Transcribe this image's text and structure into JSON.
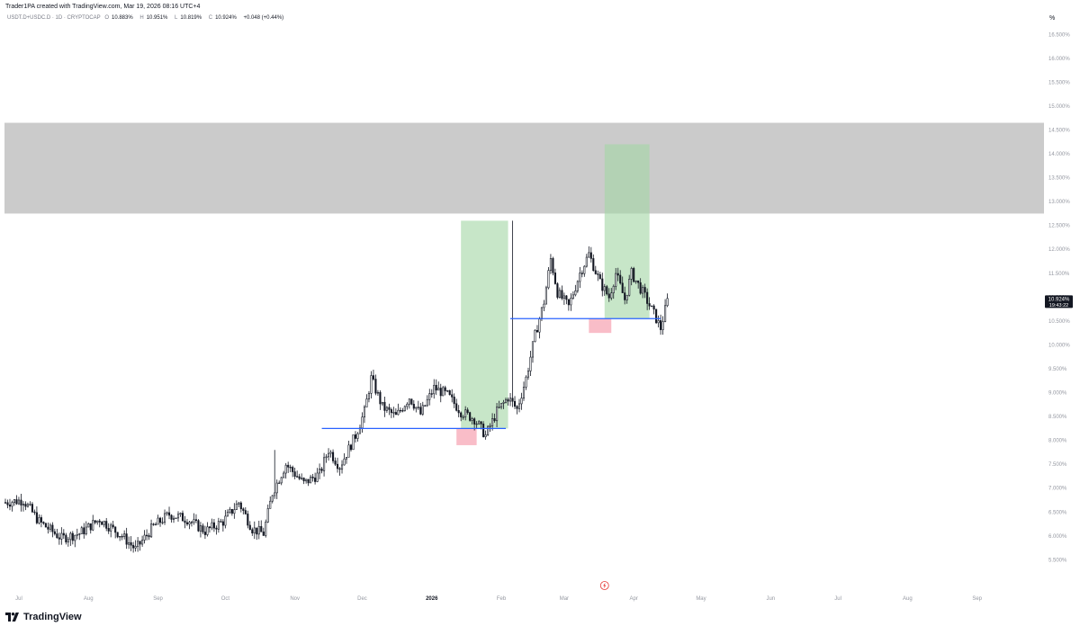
{
  "header": {
    "created_by": "Trader1PA created with TradingView.com, Mar 19, 2026 08:16 UTC+4",
    "symbol": "USDT.D+USDC.D · 1D · CRYPTOCAP",
    "ohlc": [
      {
        "label": "O",
        "value": "10.883%"
      },
      {
        "label": "H",
        "value": "10.951%"
      },
      {
        "label": "L",
        "value": "10.819%"
      },
      {
        "label": "C",
        "value": "10.924%"
      }
    ],
    "change": "+0.048 (+0.44%)",
    "unit": "%"
  },
  "logo": {
    "text": "TradingView",
    "icon": "tradingview-logo-icon"
  },
  "chart_data": {
    "type": "candlestick",
    "ylim": [
      5.3,
      16.6
    ],
    "y_ticks": [
      "5.500%",
      "6.000%",
      "6.500%",
      "7.000%",
      "7.500%",
      "8.000%",
      "8.500%",
      "9.000%",
      "9.500%",
      "10.000%",
      "10.500%",
      "11.000%",
      "11.500%",
      "12.000%",
      "12.500%",
      "13.000%",
      "13.500%",
      "14.000%",
      "14.500%",
      "15.000%",
      "15.500%",
      "16.000%",
      "16.500%"
    ],
    "x_ticks": [
      "Jul",
      "Aug",
      "Sep",
      "Oct",
      "Nov",
      "Dec",
      "2026",
      "Feb",
      "Mar",
      "Apr",
      "May",
      "Jun",
      "Jul",
      "Aug",
      "Sep"
    ],
    "x_start": "2025-06-25",
    "x_end": "2026-09-30",
    "price_label": {
      "value": "10.924%",
      "countdown": "19:43:22"
    },
    "colors": {
      "candle": "#131722",
      "supply_zone": "#c8c8c8",
      "target": "#a5d6a7",
      "stop": "#f7a7b5",
      "support_line": "#2962ff"
    },
    "supply_zone": {
      "y_low": 12.75,
      "y_high": 14.65
    },
    "support_lines": [
      {
        "from": "2025-11-13",
        "to": "2026-02-03",
        "y": 8.25
      },
      {
        "from": "2026-02-05",
        "to": "2026-04-13",
        "y": 10.55
      }
    ],
    "target_boxes": [
      {
        "from": "2026-01-14",
        "to": "2026-02-04",
        "y_low": 8.25,
        "y_high": 12.6
      },
      {
        "from": "2026-03-19",
        "to": "2026-04-08",
        "y_low": 10.55,
        "y_high": 14.2
      }
    ],
    "stop_boxes": [
      {
        "from": "2026-01-12",
        "to": "2026-01-21",
        "y_low": 7.9,
        "y_high": 8.25
      },
      {
        "from": "2026-03-12",
        "to": "2026-03-22",
        "y_low": 10.25,
        "y_high": 10.55
      }
    ],
    "flash_marker": {
      "date": "2026-03-19",
      "icon": "lightning-icon"
    },
    "path_points": [
      {
        "date": "2025-06-25",
        "value": 6.7
      },
      {
        "date": "2025-07-03",
        "value": 6.75
      },
      {
        "date": "2025-07-10",
        "value": 6.3
      },
      {
        "date": "2025-07-20",
        "value": 5.95
      },
      {
        "date": "2025-07-28",
        "value": 6.05
      },
      {
        "date": "2025-08-06",
        "value": 6.35
      },
      {
        "date": "2025-08-16",
        "value": 6.0
      },
      {
        "date": "2025-08-22",
        "value": 5.72
      },
      {
        "date": "2025-08-30",
        "value": 6.2
      },
      {
        "date": "2025-09-06",
        "value": 6.45
      },
      {
        "date": "2025-09-14",
        "value": 6.35
      },
      {
        "date": "2025-09-22",
        "value": 6.1
      },
      {
        "date": "2025-09-30",
        "value": 6.3
      },
      {
        "date": "2025-10-07",
        "value": 6.7
      },
      {
        "date": "2025-10-13",
        "value": 6.15
      },
      {
        "date": "2025-10-18",
        "value": 6.05
      },
      {
        "date": "2025-10-22",
        "value": 6.9
      },
      {
        "date": "2025-10-28",
        "value": 7.5
      },
      {
        "date": "2025-11-05",
        "value": 7.1
      },
      {
        "date": "2025-11-12",
        "value": 7.3
      },
      {
        "date": "2025-11-16",
        "value": 7.8
      },
      {
        "date": "2025-11-21",
        "value": 7.45
      },
      {
        "date": "2025-11-28",
        "value": 8.1
      },
      {
        "date": "2025-12-02",
        "value": 8.6
      },
      {
        "date": "2025-12-05",
        "value": 9.3
      },
      {
        "date": "2025-12-10",
        "value": 8.7
      },
      {
        "date": "2025-12-16",
        "value": 8.5
      },
      {
        "date": "2025-12-22",
        "value": 8.9
      },
      {
        "date": "2025-12-27",
        "value": 8.55
      },
      {
        "date": "2026-01-02",
        "value": 9.1
      },
      {
        "date": "2026-01-08",
        "value": 8.95
      },
      {
        "date": "2026-01-14",
        "value": 8.6
      },
      {
        "date": "2026-01-20",
        "value": 8.45
      },
      {
        "date": "2026-01-25",
        "value": 8.1
      },
      {
        "date": "2026-01-30",
        "value": 8.6
      },
      {
        "date": "2026-02-04",
        "value": 8.9
      },
      {
        "date": "2026-02-08",
        "value": 8.65
      },
      {
        "date": "2026-02-12",
        "value": 9.3
      },
      {
        "date": "2026-02-16",
        "value": 10.2
      },
      {
        "date": "2026-02-20",
        "value": 10.9
      },
      {
        "date": "2026-02-23",
        "value": 11.8
      },
      {
        "date": "2026-02-26",
        "value": 11.1
      },
      {
        "date": "2026-03-03",
        "value": 10.8
      },
      {
        "date": "2026-03-08",
        "value": 11.5
      },
      {
        "date": "2026-03-12",
        "value": 11.9
      },
      {
        "date": "2026-03-17",
        "value": 11.3
      },
      {
        "date": "2026-03-21",
        "value": 11.0
      },
      {
        "date": "2026-03-24",
        "value": 11.5
      },
      {
        "date": "2026-03-28",
        "value": 10.95
      },
      {
        "date": "2026-03-31",
        "value": 11.5
      },
      {
        "date": "2026-04-05",
        "value": 11.1
      },
      {
        "date": "2026-04-10",
        "value": 10.65
      },
      {
        "date": "2026-04-13",
        "value": 10.35
      },
      {
        "date": "2026-04-16",
        "value": 10.92
      }
    ]
  }
}
